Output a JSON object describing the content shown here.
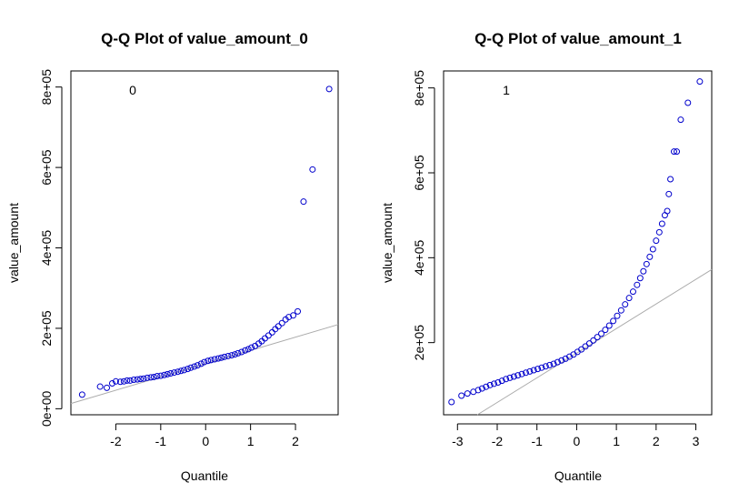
{
  "chart_data": [
    {
      "type": "scatter",
      "title": "Q-Q Plot of value_amount_0",
      "tag": "0",
      "xlabel": "Quantile",
      "ylabel": "value_amount",
      "xlim": [
        -3.0,
        2.95
      ],
      "ylim": [
        -15000,
        840000
      ],
      "xticks": [
        -2,
        -1,
        0,
        1,
        2
      ],
      "xtick_labels": [
        "-2",
        "-1",
        "0",
        "1",
        "2"
      ],
      "yticks": [
        0,
        200000,
        400000,
        600000,
        800000
      ],
      "ytick_labels": [
        "0e+00",
        "2e+05",
        "4e+05",
        "6e+05",
        "8e+05"
      ],
      "point_color": "#0000cc",
      "line_color": "#aaaaaa",
      "reference_line": {
        "intercept": 112000,
        "slope": 33000
      },
      "points": [
        [
          -2.75,
          35000
        ],
        [
          -2.35,
          55000
        ],
        [
          -2.2,
          52000
        ],
        [
          -2.08,
          63000
        ],
        [
          -2.0,
          68000
        ],
        [
          -1.9,
          67000
        ],
        [
          -1.82,
          68000
        ],
        [
          -1.75,
          70000
        ],
        [
          -1.68,
          70000
        ],
        [
          -1.6,
          72000
        ],
        [
          -1.52,
          73000
        ],
        [
          -1.45,
          74000
        ],
        [
          -1.38,
          75000
        ],
        [
          -1.3,
          77000
        ],
        [
          -1.22,
          78000
        ],
        [
          -1.15,
          79000
        ],
        [
          -1.08,
          81000
        ],
        [
          -1.0,
          82000
        ],
        [
          -0.92,
          84000
        ],
        [
          -0.85,
          86000
        ],
        [
          -0.78,
          88000
        ],
        [
          -0.7,
          90000
        ],
        [
          -0.62,
          92000
        ],
        [
          -0.55,
          94000
        ],
        [
          -0.48,
          96000
        ],
        [
          -0.4,
          99000
        ],
        [
          -0.33,
          102000
        ],
        [
          -0.25,
          105000
        ],
        [
          -0.18,
          108000
        ],
        [
          -0.1,
          112000
        ],
        [
          -0.03,
          116000
        ],
        [
          0.05,
          119000
        ],
        [
          0.12,
          121000
        ],
        [
          0.2,
          123000
        ],
        [
          0.28,
          125000
        ],
        [
          0.35,
          127000
        ],
        [
          0.42,
          129000
        ],
        [
          0.5,
          131000
        ],
        [
          0.58,
          133000
        ],
        [
          0.65,
          135000
        ],
        [
          0.72,
          138000
        ],
        [
          0.8,
          141000
        ],
        [
          0.88,
          145000
        ],
        [
          0.95,
          148000
        ],
        [
          1.02,
          152000
        ],
        [
          1.1,
          156000
        ],
        [
          1.18,
          162000
        ],
        [
          1.25,
          168000
        ],
        [
          1.32,
          175000
        ],
        [
          1.4,
          182000
        ],
        [
          1.48,
          190000
        ],
        [
          1.55,
          198000
        ],
        [
          1.62,
          205000
        ],
        [
          1.7,
          213000
        ],
        [
          1.78,
          222000
        ],
        [
          1.85,
          228000
        ],
        [
          1.95,
          232000
        ],
        [
          2.05,
          242000
        ],
        [
          2.18,
          515000
        ],
        [
          2.38,
          595000
        ],
        [
          2.75,
          795000
        ]
      ]
    },
    {
      "type": "scatter",
      "title": "Q-Q Plot of value_amount_1",
      "tag": "1",
      "xlabel": "Quantile",
      "ylabel": "value_amount",
      "xlim": [
        -3.35,
        3.4
      ],
      "ylim": [
        30000,
        840000
      ],
      "xticks": [
        -3,
        -2,
        -1,
        0,
        1,
        2,
        3
      ],
      "xtick_labels": [
        "-3",
        "-2",
        "-1",
        "0",
        "1",
        "2",
        "3"
      ],
      "yticks": [
        200000,
        400000,
        600000,
        800000
      ],
      "ytick_labels": [
        "2e+05",
        "4e+05",
        "6e+05",
        "8e+05"
      ],
      "point_color": "#0000cc",
      "line_color": "#aaaaaa",
      "reference_line": {
        "intercept": 175000,
        "slope": 58000
      },
      "points": [
        [
          -3.15,
          60000
        ],
        [
          -2.9,
          75000
        ],
        [
          -2.75,
          80000
        ],
        [
          -2.6,
          84000
        ],
        [
          -2.48,
          88000
        ],
        [
          -2.38,
          92000
        ],
        [
          -2.28,
          96000
        ],
        [
          -2.18,
          100000
        ],
        [
          -2.08,
          103000
        ],
        [
          -1.98,
          106000
        ],
        [
          -1.88,
          110000
        ],
        [
          -1.78,
          114000
        ],
        [
          -1.68,
          117000
        ],
        [
          -1.58,
          120000
        ],
        [
          -1.48,
          123000
        ],
        [
          -1.38,
          126000
        ],
        [
          -1.28,
          129000
        ],
        [
          -1.18,
          132000
        ],
        [
          -1.08,
          135000
        ],
        [
          -0.98,
          138000
        ],
        [
          -0.88,
          141000
        ],
        [
          -0.78,
          144000
        ],
        [
          -0.68,
          147000
        ],
        [
          -0.58,
          150000
        ],
        [
          -0.48,
          154000
        ],
        [
          -0.38,
          158000
        ],
        [
          -0.28,
          162000
        ],
        [
          -0.18,
          167000
        ],
        [
          -0.08,
          172000
        ],
        [
          0.02,
          178000
        ],
        [
          0.12,
          184000
        ],
        [
          0.22,
          191000
        ],
        [
          0.32,
          198000
        ],
        [
          0.42,
          205000
        ],
        [
          0.52,
          213000
        ],
        [
          0.62,
          221000
        ],
        [
          0.72,
          230000
        ],
        [
          0.82,
          240000
        ],
        [
          0.92,
          251000
        ],
        [
          1.02,
          263000
        ],
        [
          1.12,
          276000
        ],
        [
          1.22,
          290000
        ],
        [
          1.32,
          305000
        ],
        [
          1.42,
          320000
        ],
        [
          1.52,
          336000
        ],
        [
          1.6,
          352000
        ],
        [
          1.68,
          368000
        ],
        [
          1.76,
          385000
        ],
        [
          1.84,
          402000
        ],
        [
          1.92,
          420000
        ],
        [
          2.0,
          440000
        ],
        [
          2.08,
          460000
        ],
        [
          2.15,
          480000
        ],
        [
          2.22,
          500000
        ],
        [
          2.28,
          510000
        ],
        [
          2.32,
          550000
        ],
        [
          2.36,
          585000
        ],
        [
          2.45,
          650000
        ],
        [
          2.52,
          650000
        ],
        [
          2.62,
          725000
        ],
        [
          2.8,
          765000
        ],
        [
          3.1,
          815000
        ]
      ]
    }
  ]
}
